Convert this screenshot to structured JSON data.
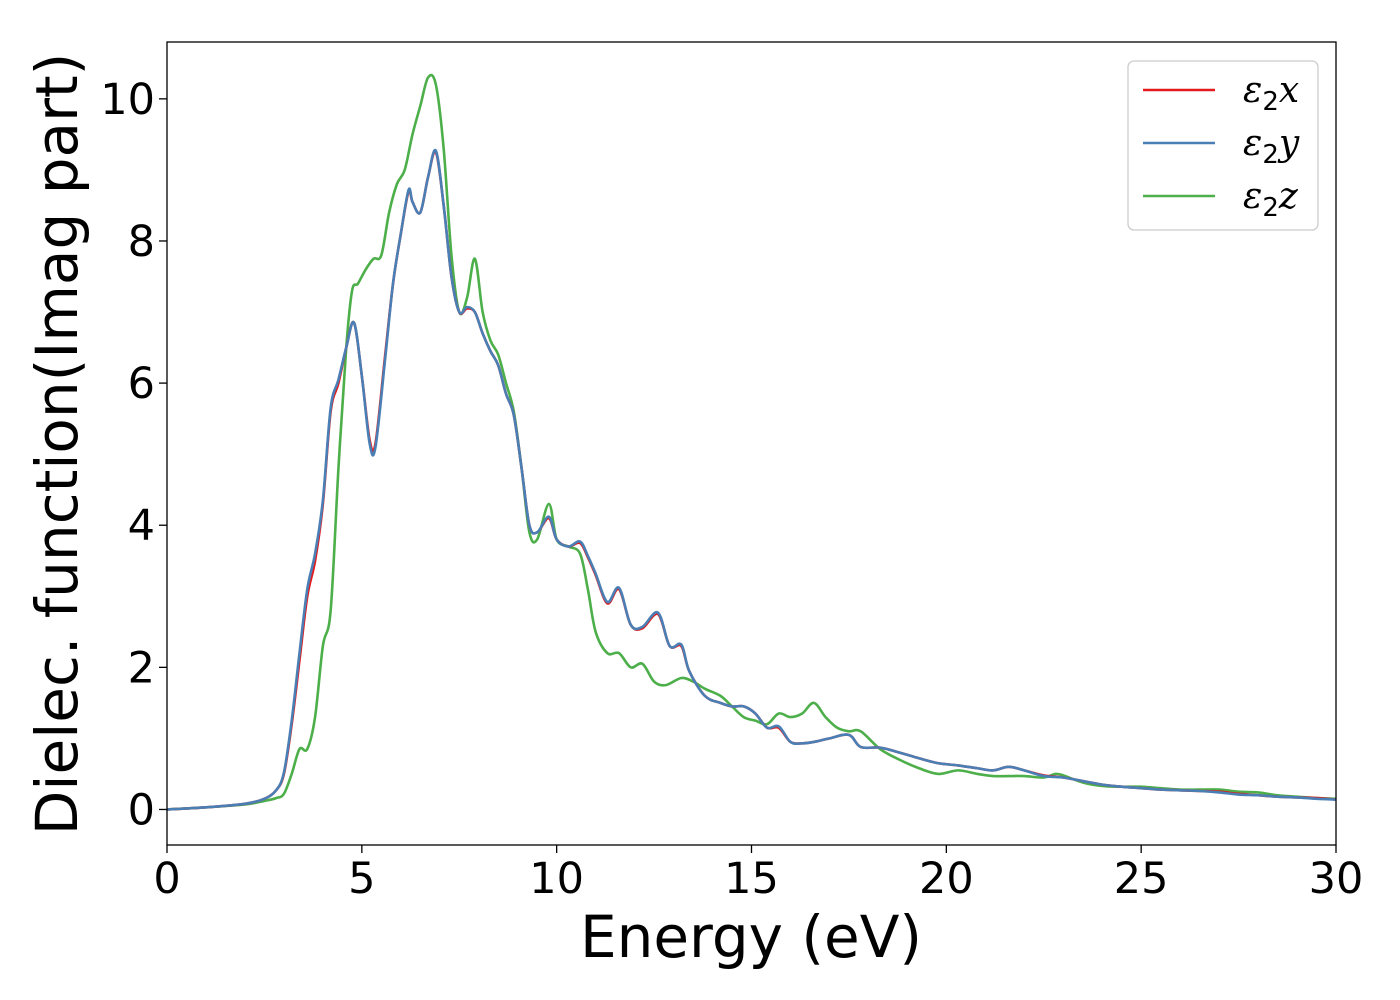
{
  "chart_data": {
    "type": "line",
    "title": "",
    "xlabel": "Energy (eV)",
    "ylabel": "Dielec. function(Imag part)",
    "xlim": [
      0,
      30
    ],
    "ylim": [
      -0.5,
      10.8
    ],
    "xticks": [
      0,
      5,
      10,
      15,
      20,
      25,
      30
    ],
    "yticks": [
      0,
      2,
      4,
      6,
      8,
      10
    ],
    "grid": false,
    "legend_position": "top-right",
    "series": [
      {
        "name": "ε₂x",
        "legend": {
          "sym": "ε",
          "sub": "2",
          "comp": "x"
        },
        "color": "#e41a1c",
        "x": [
          0,
          1,
          2,
          2.5,
          2.8,
          3.0,
          3.2,
          3.4,
          3.6,
          3.8,
          4.0,
          4.2,
          4.4,
          4.6,
          4.8,
          5.0,
          5.2,
          5.35,
          5.6,
          5.8,
          6.0,
          6.2,
          6.3,
          6.5,
          6.7,
          6.9,
          7.1,
          7.3,
          7.5,
          7.7,
          7.9,
          8.1,
          8.3,
          8.5,
          8.7,
          8.9,
          9.1,
          9.3,
          9.5,
          9.8,
          10.0,
          10.3,
          10.6,
          10.8,
          11.0,
          11.3,
          11.6,
          11.9,
          12.2,
          12.6,
          12.9,
          13.2,
          13.4,
          13.8,
          14.2,
          14.5,
          14.8,
          15.1,
          15.4,
          15.7,
          16.0,
          16.3,
          16.6,
          17.0,
          17.5,
          17.8,
          18.3,
          18.8,
          19.3,
          19.8,
          20.3,
          20.8,
          21.2,
          21.6,
          22.0,
          22.5,
          23.0,
          23.5,
          24.0,
          24.5,
          25.0,
          25.5,
          26.0,
          26.5,
          27.0,
          27.5,
          28.0,
          28.5,
          29.0,
          29.5,
          30.0
        ],
        "y": [
          0.0,
          0.03,
          0.08,
          0.15,
          0.27,
          0.5,
          1.2,
          2.1,
          3.0,
          3.5,
          4.3,
          5.6,
          6.0,
          6.5,
          6.85,
          6.1,
          5.2,
          5.15,
          6.4,
          7.4,
          8.1,
          8.7,
          8.55,
          8.4,
          8.9,
          9.25,
          8.5,
          7.5,
          7.0,
          7.05,
          7.0,
          6.7,
          6.45,
          6.25,
          5.85,
          5.55,
          4.8,
          4.0,
          3.9,
          4.1,
          3.8,
          3.7,
          3.75,
          3.55,
          3.3,
          2.9,
          3.1,
          2.6,
          2.55,
          2.75,
          2.3,
          2.3,
          1.95,
          1.6,
          1.5,
          1.45,
          1.45,
          1.35,
          1.15,
          1.15,
          0.95,
          0.93,
          0.95,
          1.0,
          1.05,
          0.88,
          0.87,
          0.8,
          0.72,
          0.65,
          0.62,
          0.58,
          0.55,
          0.6,
          0.55,
          0.48,
          0.45,
          0.4,
          0.35,
          0.32,
          0.3,
          0.28,
          0.27,
          0.26,
          0.25,
          0.22,
          0.2,
          0.18,
          0.17,
          0.16,
          0.14
        ]
      },
      {
        "name": "ε₂y",
        "legend": {
          "sym": "ε",
          "sub": "2",
          "comp": "y"
        },
        "color": "#4a7fb5",
        "x": [
          0,
          1,
          2,
          2.5,
          2.8,
          3.0,
          3.2,
          3.4,
          3.6,
          3.8,
          4.0,
          4.2,
          4.4,
          4.6,
          4.8,
          5.0,
          5.2,
          5.35,
          5.6,
          5.8,
          6.0,
          6.2,
          6.3,
          6.5,
          6.7,
          6.9,
          7.1,
          7.3,
          7.5,
          7.7,
          7.9,
          8.1,
          8.3,
          8.5,
          8.7,
          8.9,
          9.1,
          9.3,
          9.5,
          9.8,
          10.0,
          10.3,
          10.6,
          10.8,
          11.0,
          11.3,
          11.6,
          11.9,
          12.2,
          12.6,
          12.9,
          13.2,
          13.4,
          13.8,
          14.2,
          14.5,
          14.8,
          15.1,
          15.4,
          15.7,
          16.0,
          16.3,
          16.6,
          17.0,
          17.5,
          17.8,
          18.3,
          18.8,
          19.3,
          19.8,
          20.3,
          20.8,
          21.2,
          21.6,
          22.0,
          22.5,
          23.0,
          23.5,
          24.0,
          24.5,
          25.0,
          25.5,
          26.0,
          26.5,
          27.0,
          27.5,
          28.0,
          28.5,
          29.0,
          29.5,
          30.0
        ],
        "y": [
          0.0,
          0.03,
          0.08,
          0.15,
          0.27,
          0.52,
          1.25,
          2.2,
          3.1,
          3.6,
          4.35,
          5.65,
          6.05,
          6.5,
          6.85,
          6.1,
          5.15,
          5.1,
          6.35,
          7.4,
          8.1,
          8.72,
          8.55,
          8.4,
          8.9,
          9.27,
          8.5,
          7.5,
          7.0,
          7.07,
          7.0,
          6.7,
          6.45,
          6.25,
          5.85,
          5.55,
          4.8,
          4.0,
          3.9,
          4.12,
          3.8,
          3.7,
          3.77,
          3.57,
          3.32,
          2.92,
          3.12,
          2.6,
          2.57,
          2.77,
          2.3,
          2.32,
          1.95,
          1.6,
          1.5,
          1.45,
          1.45,
          1.35,
          1.15,
          1.17,
          0.95,
          0.93,
          0.95,
          1.0,
          1.05,
          0.88,
          0.87,
          0.8,
          0.72,
          0.65,
          0.62,
          0.58,
          0.55,
          0.6,
          0.55,
          0.47,
          0.45,
          0.4,
          0.35,
          0.32,
          0.3,
          0.28,
          0.27,
          0.26,
          0.24,
          0.21,
          0.2,
          0.18,
          0.17,
          0.15,
          0.14
        ]
      },
      {
        "name": "ε₂z",
        "legend": {
          "sym": "ε",
          "sub": "2",
          "comp": "z"
        },
        "color": "#4daf4a",
        "x": [
          0,
          1,
          2,
          2.5,
          2.8,
          3.0,
          3.2,
          3.4,
          3.6,
          3.8,
          4.0,
          4.2,
          4.4,
          4.6,
          4.75,
          4.9,
          5.1,
          5.3,
          5.5,
          5.7,
          5.9,
          6.1,
          6.3,
          6.5,
          6.7,
          6.9,
          7.1,
          7.3,
          7.5,
          7.7,
          7.9,
          8.1,
          8.3,
          8.5,
          8.7,
          8.9,
          9.1,
          9.3,
          9.5,
          9.8,
          10.0,
          10.3,
          10.6,
          10.8,
          11.0,
          11.3,
          11.6,
          11.9,
          12.2,
          12.5,
          12.8,
          13.2,
          13.5,
          13.8,
          14.2,
          14.5,
          14.8,
          15.1,
          15.4,
          15.7,
          16.0,
          16.3,
          16.6,
          16.9,
          17.2,
          17.5,
          17.8,
          18.3,
          18.8,
          19.3,
          19.8,
          20.3,
          20.8,
          21.2,
          21.6,
          22.0,
          22.5,
          22.8,
          23.0,
          23.5,
          24.0,
          24.5,
          25.0,
          25.5,
          26.0,
          26.5,
          27.0,
          27.5,
          28.0,
          28.5,
          29.0,
          29.5,
          30.0
        ],
        "y": [
          0.0,
          0.03,
          0.07,
          0.12,
          0.16,
          0.22,
          0.5,
          0.85,
          0.85,
          1.3,
          2.3,
          2.8,
          4.8,
          6.5,
          7.3,
          7.4,
          7.6,
          7.75,
          7.8,
          8.4,
          8.8,
          9.0,
          9.5,
          9.9,
          10.3,
          10.2,
          9.3,
          7.8,
          7.0,
          7.2,
          7.75,
          7.0,
          6.6,
          6.4,
          6.0,
          5.6,
          4.8,
          3.9,
          3.8,
          4.3,
          3.8,
          3.7,
          3.6,
          3.1,
          2.5,
          2.2,
          2.2,
          2.0,
          2.05,
          1.8,
          1.75,
          1.85,
          1.8,
          1.7,
          1.6,
          1.45,
          1.3,
          1.25,
          1.2,
          1.35,
          1.3,
          1.35,
          1.5,
          1.3,
          1.15,
          1.1,
          1.1,
          0.85,
          0.7,
          0.58,
          0.5,
          0.55,
          0.5,
          0.47,
          0.47,
          0.47,
          0.45,
          0.5,
          0.48,
          0.38,
          0.33,
          0.32,
          0.32,
          0.3,
          0.28,
          0.28,
          0.28,
          0.25,
          0.24,
          0.2,
          0.18,
          0.16,
          0.15
        ]
      }
    ]
  }
}
